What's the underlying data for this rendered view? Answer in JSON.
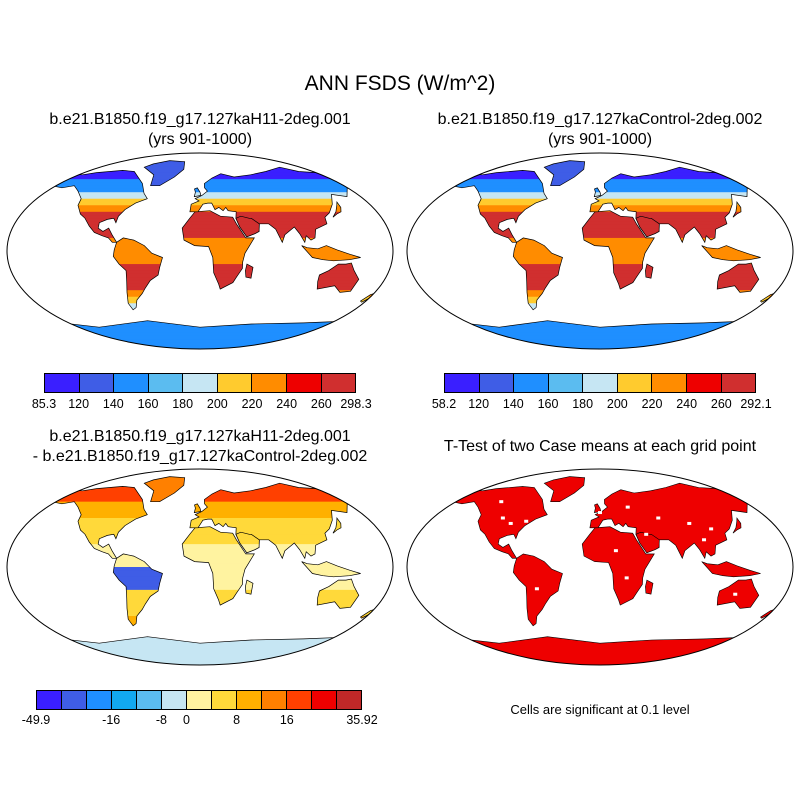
{
  "main_title": "ANN FSDS (W/m^2)",
  "panels": {
    "top_left": {
      "line1": "b.e21.B1850.f19_g17.127kaH11-2deg.001",
      "line2": "(yrs 901-1000)"
    },
    "top_right": {
      "line1": "b.e21.B1850.f19_g17.127kaControl-2deg.002",
      "line2": "(yrs 901-1000)"
    },
    "bottom_left": {
      "line1": "b.e21.B1850.f19_g17.127kaH11-2deg.001",
      "line2": "- b.e21.B1850.f19_g17.127kaControl-2deg.002"
    },
    "bottom_right": {
      "line1": "T-Test of two Case means at each grid point"
    }
  },
  "colorbars": {
    "top_left": {
      "colors": [
        "#3a1fff",
        "#3f5de6",
        "#1f8fff",
        "#5bbcf0",
        "#c6e6f3",
        "#ffcb2e",
        "#ff8c00",
        "#ee0000",
        "#d02f2f"
      ],
      "labels": [
        "85.3",
        "120",
        "140",
        "160",
        "180",
        "200",
        "220",
        "240",
        "260",
        "298.3"
      ]
    },
    "top_right": {
      "colors": [
        "#3a1fff",
        "#3f5de6",
        "#1f8fff",
        "#5bbcf0",
        "#c6e6f3",
        "#ffcb2e",
        "#ff8c00",
        "#ee0000",
        "#d02f2f"
      ],
      "labels": [
        "58.2",
        "120",
        "140",
        "160",
        "180",
        "200",
        "220",
        "240",
        "260",
        "292.1"
      ]
    },
    "bottom": {
      "colors": [
        "#3a1fff",
        "#3f5de6",
        "#1f8fff",
        "#12a8f0",
        "#5bbcf0",
        "#c6e6f3",
        "#fff3a0",
        "#ffd93a",
        "#ffb000",
        "#ff8000",
        "#ff4000",
        "#ee0000",
        "#c02828"
      ],
      "labels": [
        "-49.9",
        "-16",
        "-8",
        "0",
        "8",
        "16",
        "35.92"
      ],
      "label_boundaries": [
        0,
        3,
        5,
        6,
        8,
        10,
        13
      ]
    }
  },
  "note": "Cells are significant at 0.1 level",
  "map_colors": {
    "ocean": "#ffffff",
    "outline": "#000000",
    "sig": "#ee0000"
  }
}
